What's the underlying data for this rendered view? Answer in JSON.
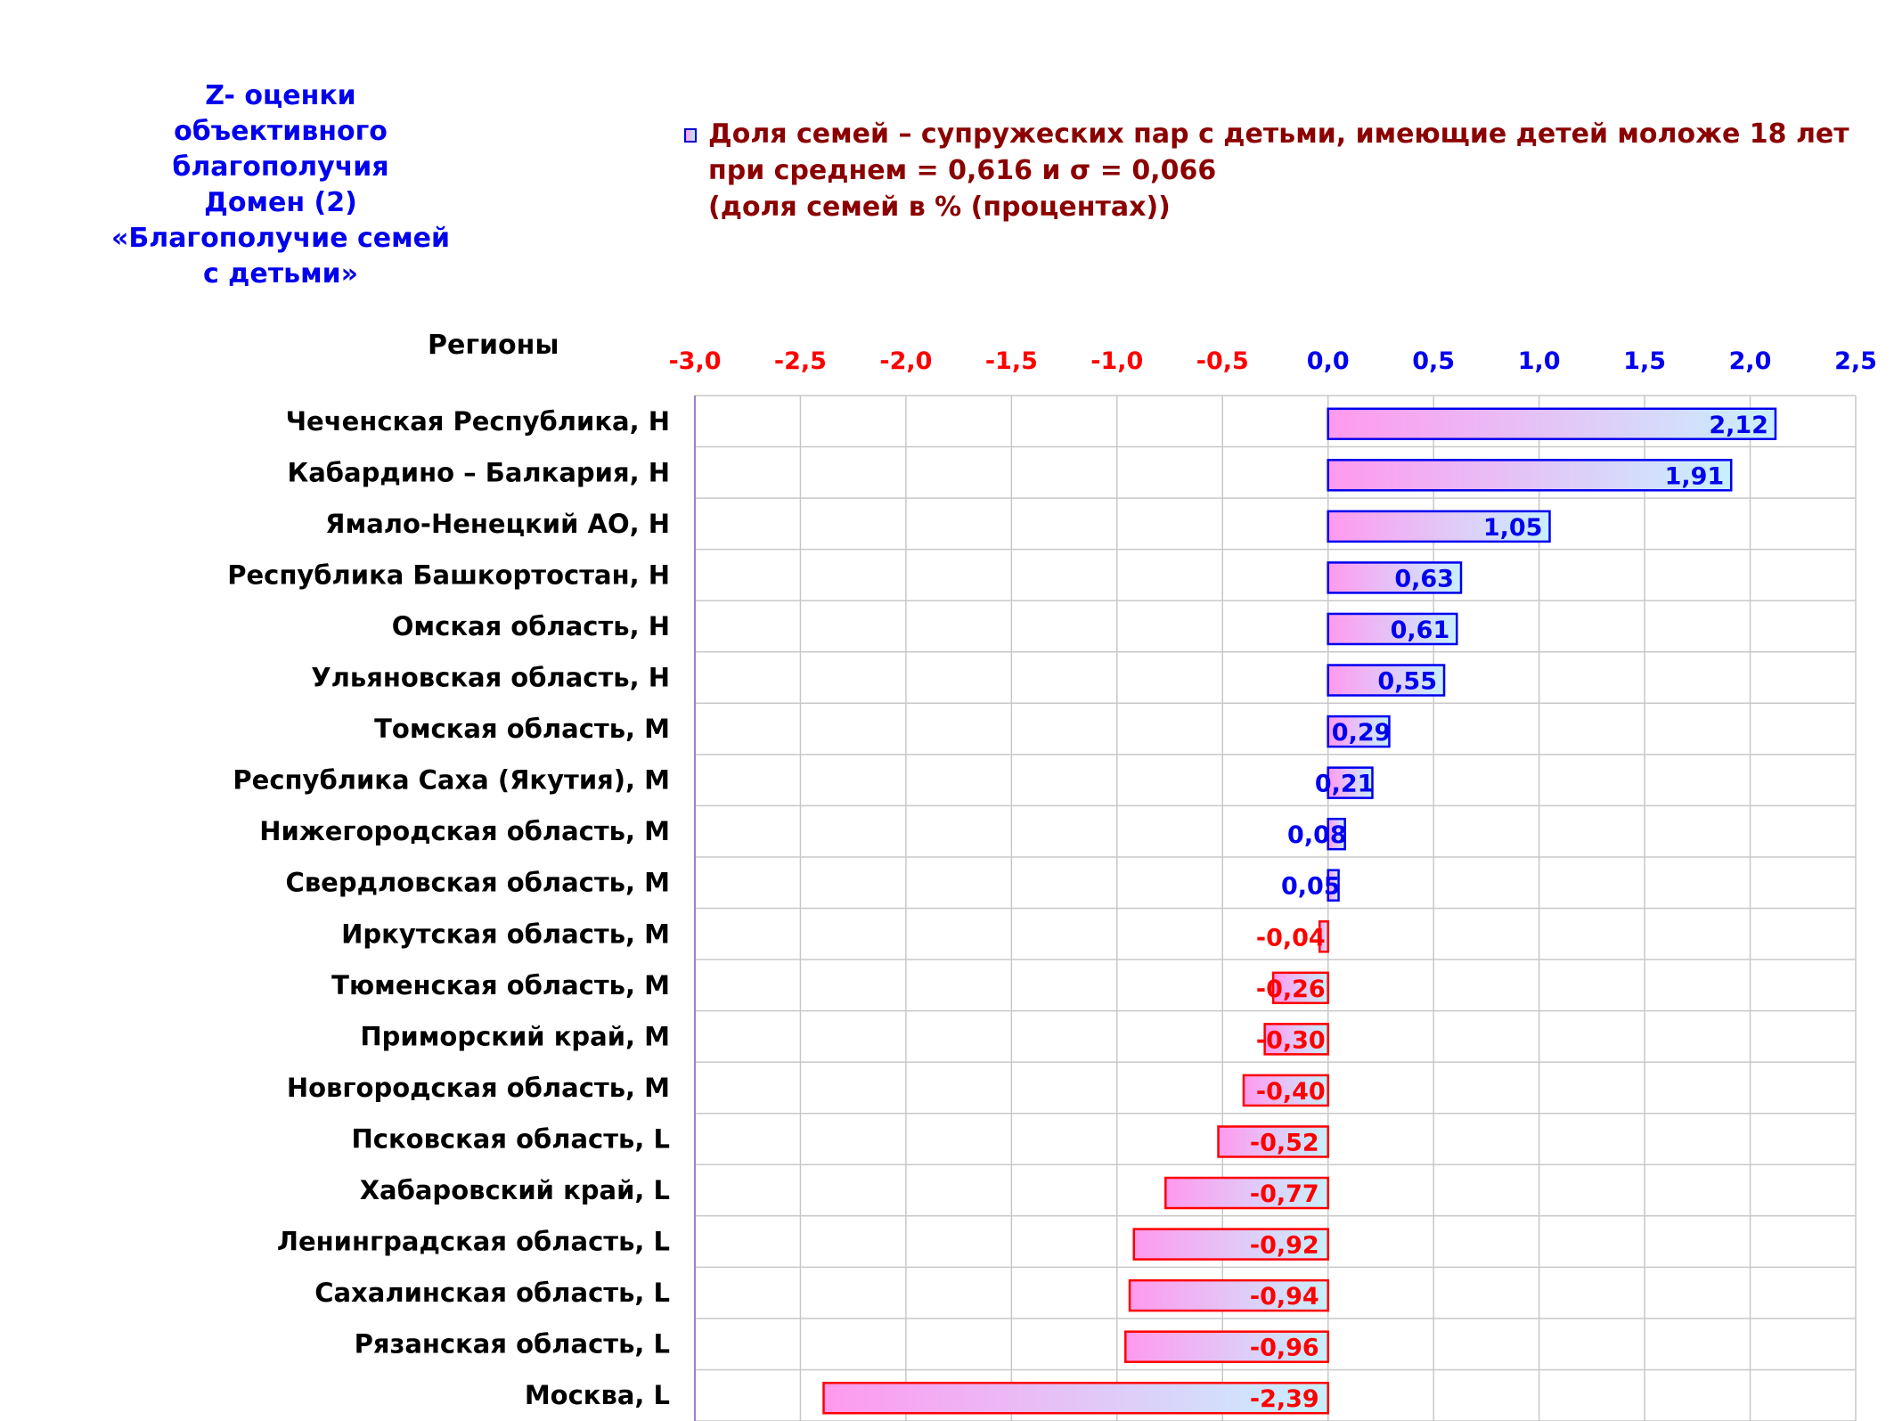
{
  "side_title": {
    "lines": [
      "Z- оценки",
      "объективного",
      "благополучия",
      "Домен (2)",
      "«Благополучие семей",
      "с детьми»"
    ]
  },
  "legend": {
    "lines": [
      "Доля семей – супружеских пар с детьми, имеющие детей моложе 18 лет",
      "при среднем = 0,616  и σ = 0,066",
      "(доля семей в % (процентах))"
    ]
  },
  "colors": {
    "negative": "#ff0000",
    "positive": "#0000ee",
    "bar_start": "#ff99ee",
    "bar_end": "#c8f0ff",
    "grid": "#c8c8c8",
    "title": "#0000ee",
    "legend_text": "#8b0000"
  },
  "chart_data": {
    "type": "bar",
    "orientation": "horizontal",
    "category_header": "Регионы",
    "xlim": [
      -3.0,
      2.5
    ],
    "x_ticks": [
      "-3,0",
      "-2,5",
      "-2,0",
      "-1,5",
      "-1,0",
      "-0,5",
      "0,0",
      "0,5",
      "1,0",
      "1,5",
      "2,0",
      "2,5"
    ],
    "x_tick_values": [
      -3.0,
      -2.5,
      -2.0,
      -1.5,
      -1.0,
      -0.5,
      0.0,
      0.5,
      1.0,
      1.5,
      2.0,
      2.5
    ],
    "grid": true,
    "categories": [
      "Чеченская Республика,  H",
      "Кабардино – Балкария,  H",
      "Ямало-Ненецкий АО,  H",
      "Республика Башкортостан,  H",
      "Омская область,  H",
      "Ульяновская область,  H",
      "Томская область,  M",
      "Республика Саха (Якутия),  M",
      "Нижегородская область,  M",
      "Свердловская область,  M",
      "Иркутская область,  M",
      "Тюменская область,  M",
      "Приморский край,  M",
      "Новгородская область,  M",
      "Псковская область,  L",
      "Хабаровский край,  L",
      "Ленинградская область,  L",
      "Сахалинская область,  L",
      "Рязанская область,  L",
      "Москва,  L"
    ],
    "values": [
      2.12,
      1.91,
      1.05,
      0.63,
      0.61,
      0.55,
      0.29,
      0.21,
      0.08,
      0.05,
      -0.04,
      -0.26,
      -0.3,
      -0.4,
      -0.52,
      -0.77,
      -0.92,
      -0.94,
      -0.96,
      -2.39
    ],
    "value_labels": [
      "2,12",
      "1,91",
      "1,05",
      "0,63",
      "0,61",
      "0,55",
      "0,29",
      "0,21",
      "0,08",
      "0,05",
      "-0,04",
      "-0,26",
      "-0,30",
      "-0,40",
      "-0,52",
      "-0,77",
      "-0,92",
      "-0,94",
      "-0,96",
      "-2,39"
    ]
  }
}
